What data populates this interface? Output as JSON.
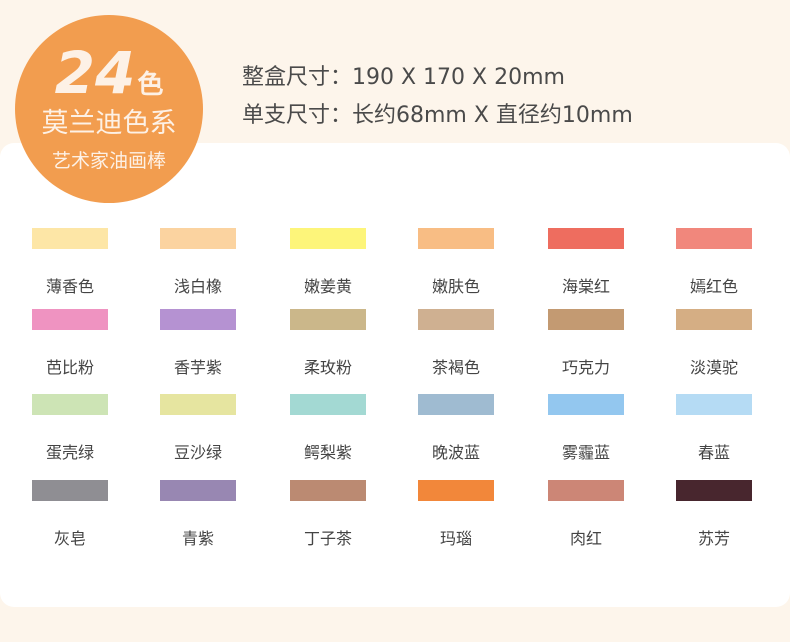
{
  "badge": {
    "count": "24",
    "count_suffix": "色",
    "series": "莫兰迪色系",
    "product": "艺术家油画棒",
    "color": "#f29d4f"
  },
  "specs": {
    "box": "整盒尺寸：190 X 170 X 20mm",
    "stick": "单支尺寸：长约68mm X 直径约10mm"
  },
  "colors": [
    {
      "name": "薄香色",
      "hex": "#fde6a6"
    },
    {
      "name": "浅白橡",
      "hex": "#fbd3a0"
    },
    {
      "name": "嫩姜黄",
      "hex": "#fdf57a"
    },
    {
      "name": "嫩肤色",
      "hex": "#f8bd84"
    },
    {
      "name": "海棠红",
      "hex": "#ee6d5f"
    },
    {
      "name": "嫣红色",
      "hex": "#f1877c"
    },
    {
      "name": "芭比粉",
      "hex": "#ef93c1"
    },
    {
      "name": "香芋紫",
      "hex": "#b592d2"
    },
    {
      "name": "柔玫粉",
      "hex": "#cbb78a"
    },
    {
      "name": "茶褐色",
      "hex": "#cfb091"
    },
    {
      "name": "巧克力",
      "hex": "#c39a72"
    },
    {
      "name": "淡漠驼",
      "hex": "#d5ae84"
    },
    {
      "name": "蛋壳绿",
      "hex": "#cde4b5"
    },
    {
      "name": "豆沙绿",
      "hex": "#e6e5a0"
    },
    {
      "name": "鳄梨紫",
      "hex": "#a3d9d3"
    },
    {
      "name": "晚波蓝",
      "hex": "#9fbbd1"
    },
    {
      "name": "雾霾蓝",
      "hex": "#93c7ef"
    },
    {
      "name": "春蓝",
      "hex": "#b5dbf4"
    },
    {
      "name": "灰皂",
      "hex": "#8f8e93"
    },
    {
      "name": "青紫",
      "hex": "#9887b2"
    },
    {
      "name": "丁子茶",
      "hex": "#bb8a72"
    },
    {
      "name": "玛瑙",
      "hex": "#f2873a"
    },
    {
      "name": "肉红",
      "hex": "#cc8676"
    },
    {
      "name": "苏芳",
      "hex": "#48262e"
    }
  ]
}
